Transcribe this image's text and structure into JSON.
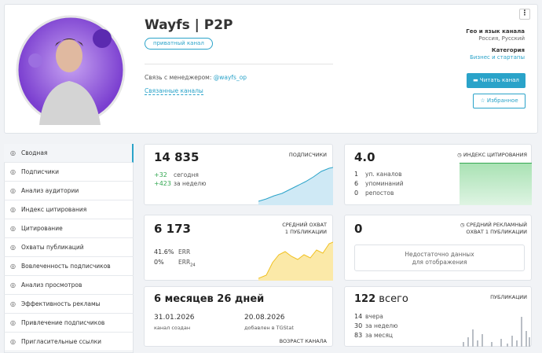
{
  "header": {
    "title": "Wayfs | P2P",
    "badge": "приватный канал",
    "manager_label": "Связь с менеджером:",
    "manager_link": "@wayfs_op",
    "related": "Связанные каналы",
    "geo_label": "Гео и язык канала",
    "geo_value": "Россия, Русский",
    "category_label": "Категория",
    "category_value": "Бизнес и стартапы",
    "read_button": "Читать канал",
    "favorite_button": "Избранное"
  },
  "sidebar": {
    "items": [
      "Сводная",
      "Подписчики",
      "Анализ аудитории",
      "Индекс цитирования",
      "Цитирование",
      "Охваты публикаций",
      "Вовлеченность подписчиков",
      "Анализ просмотров",
      "Эффективность рекламы",
      "Привлечение подписчиков",
      "Пригласительные ссылки"
    ]
  },
  "cards": {
    "subscribers": {
      "value": "14 835",
      "label": "ПОДПИСЧИКИ",
      "stats": [
        {
          "value": "+32",
          "label": "сегодня"
        },
        {
          "value": "+423",
          "label": "за неделю"
        }
      ]
    },
    "citation": {
      "value": "4.0",
      "label": "ИНДЕКС ЦИТИРОВАНИЯ",
      "stats": [
        {
          "value": "1",
          "label": "уп. каналов"
        },
        {
          "value": "6",
          "label": "упоминаний"
        },
        {
          "value": "0",
          "label": "репостов"
        }
      ]
    },
    "reach": {
      "value": "6 173",
      "label": [
        "СРЕДНИЙ ОХВАТ",
        "1 ПУБЛИКАЦИИ"
      ],
      "stats": [
        {
          "value": "41.6%",
          "label": "ERR"
        },
        {
          "value": "0%",
          "label": "ERR",
          "sub": "24"
        }
      ]
    },
    "ad_reach": {
      "value": "0",
      "label": [
        "СРЕДНИЙ РЕКЛАМНЫЙ",
        "ОХВАТ 1 ПУБЛИКАЦИИ"
      ],
      "empty": [
        "Недостаточно данных",
        "для отображения"
      ]
    },
    "age": {
      "value": "6 месяцев 26 дней",
      "label": "ВОЗРАСТ КАНАЛА",
      "created_date": "31.01.2026",
      "created_label": "канал создан",
      "added_date": "20.08.2026",
      "added_label": "добавлен в TGStat"
    },
    "posts": {
      "value": "122",
      "value_suffix": "всего",
      "label": "ПУБЛИКАЦИИ",
      "stats": [
        {
          "value": "14",
          "label": "вчера"
        },
        {
          "value": "30",
          "label": "за неделю"
        },
        {
          "value": "83",
          "label": "за месяц"
        }
      ]
    }
  }
}
